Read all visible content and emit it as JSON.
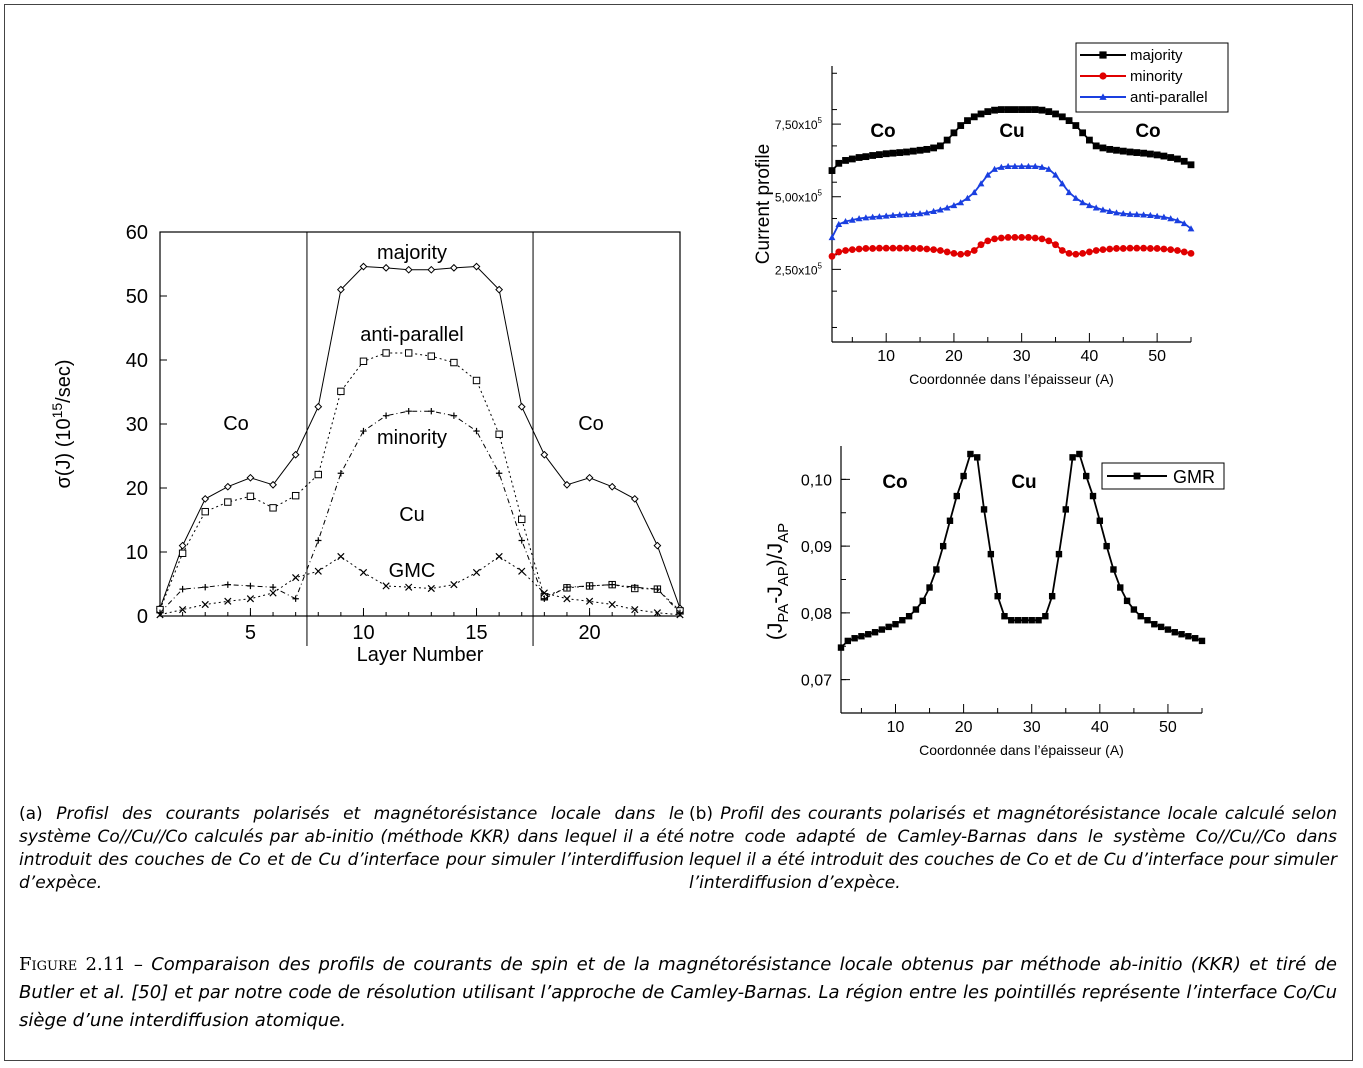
{
  "figure": {
    "label": "Figure 2.11 –",
    "caption": "Comparaison des profils de courants de spin et de la magnétorésistance locale obtenus par méthode ab-initio (KKR) et tiré de Butler et al. [50] et par notre code de résolution utilisant l’approche de Camley-Barnas. La région entre les pointillés représente l’interface Co/Cu siège d’une interdiffusion atomique."
  },
  "subfigures": {
    "a": {
      "tag": "(a)",
      "caption": "Profisl des courants polarisés et magnétorésistance locale dans le système Co//Cu//Co calculés par ab-initio (méthode KKR) dans lequel il a été introduit des couches de Co et de Cu d’interface pour simuler l’interdiffusion d’expèce."
    },
    "b": {
      "tag": "(b)",
      "caption": "Profil des courants polarisés et magnétorésistance locale calculé selon notre code adapté de Camley-Barnas dans le système Co//Cu//Co dans lequel il a été introduit des couches de Co et de Cu d’interface pour simuler l’interdiffusion d’expèce."
    }
  },
  "chart_data": [
    {
      "id": "a",
      "type": "line",
      "xlabel": "Layer Number",
      "ylabel_main": "σ(J) (10",
      "ylabel_sup": "15",
      "ylabel_tail": "/sec)",
      "xlim": [
        1,
        24
      ],
      "ylim": [
        0,
        60
      ],
      "xticks": [
        5,
        10,
        15,
        20
      ],
      "yticks": [
        0,
        10,
        20,
        30,
        40,
        50,
        60
      ],
      "interfaces_x": [
        7.5,
        17.5
      ],
      "region_labels": [
        "Co",
        "Cu",
        "Co"
      ],
      "x": [
        1,
        2,
        3,
        4,
        5,
        6,
        7,
        8,
        9,
        10,
        11,
        12,
        13,
        14,
        15,
        16,
        17,
        18,
        19,
        20,
        21,
        22,
        23,
        24
      ],
      "series": [
        {
          "name": "majority",
          "marker": "diamond",
          "dash": "solid",
          "values": [
            1.2,
            11,
            18.3,
            20.2,
            21.6,
            20.5,
            25.2,
            32.7,
            51,
            54.6,
            54.4,
            54.1,
            54.1,
            54.4,
            54.6,
            51,
            32.7,
            25.2,
            20.5,
            21.6,
            20.2,
            18.3,
            11,
            1.2
          ]
        },
        {
          "name": "anti-parallel",
          "marker": "square",
          "dash": "dotted",
          "values": [
            1,
            9.8,
            16.3,
            17.8,
            18.7,
            16.9,
            18.8,
            22.1,
            35.1,
            39.8,
            41.1,
            41.1,
            40.6,
            39.6,
            36.8,
            28.4,
            15.1,
            3,
            4.4,
            4.7,
            4.9,
            4.3,
            4.2,
            0.8
          ]
        },
        {
          "name": "minority",
          "marker": "plus",
          "dash": "dashdot",
          "values": [
            0.5,
            4.2,
            4.5,
            4.9,
            4.7,
            4.5,
            2.7,
            11.8,
            22.3,
            28.9,
            31.3,
            32,
            32,
            31.3,
            28.9,
            22.3,
            11.8,
            2.7,
            4.5,
            4.7,
            4.9,
            4.5,
            4.2,
            0.5
          ]
        },
        {
          "name": "GMC",
          "marker": "cross",
          "dash": "dotted",
          "values": [
            0.2,
            1,
            1.8,
            2.3,
            2.7,
            3.6,
            6,
            7,
            9.3,
            6.8,
            4.7,
            4.5,
            4.3,
            4.9,
            6.8,
            9.3,
            7,
            3.6,
            2.7,
            2.3,
            1.8,
            1,
            0.5,
            0.2
          ]
        }
      ]
    },
    {
      "id": "b-top",
      "type": "line",
      "xlabel": "Coordonnée dans l’épaisseur (A)",
      "ylabel": "Current profile",
      "xlim": [
        2,
        55
      ],
      "ylim": [
        0,
        9.5
      ],
      "y_scale_note": "x10^5",
      "xticks": [
        10,
        20,
        30,
        40,
        50
      ],
      "yticks": [
        {
          "value": 2.5,
          "label": "2,50x10",
          "exp": "5"
        },
        {
          "value": 5.0,
          "label": "5,00x10",
          "exp": "5"
        },
        {
          "value": 7.5,
          "label": "7,50x10",
          "exp": "5"
        }
      ],
      "region_labels": [
        "Co",
        "Cu",
        "Co"
      ],
      "legend_position": "top-right",
      "x": [
        2,
        3,
        4,
        5,
        6,
        7,
        8,
        9,
        10,
        11,
        12,
        13,
        14,
        15,
        16,
        17,
        18,
        19,
        20,
        21,
        22,
        23,
        24,
        25,
        26,
        27,
        28,
        29,
        30,
        31,
        32,
        33,
        34,
        35,
        36,
        37,
        38,
        39,
        40,
        41,
        42,
        43,
        44,
        45,
        46,
        47,
        48,
        49,
        50,
        51,
        52,
        53,
        54,
        55
      ],
      "series": [
        {
          "name": "majority",
          "color": "#000000",
          "marker": "square",
          "values": [
            5.9,
            6.15,
            6.25,
            6.3,
            6.35,
            6.38,
            6.42,
            6.45,
            6.48,
            6.5,
            6.52,
            6.54,
            6.57,
            6.6,
            6.63,
            6.68,
            6.75,
            6.95,
            7.2,
            7.45,
            7.62,
            7.75,
            7.85,
            7.93,
            7.98,
            8,
            8,
            8,
            8,
            8,
            8,
            7.98,
            7.93,
            7.85,
            7.75,
            7.62,
            7.45,
            7.2,
            6.95,
            6.75,
            6.68,
            6.63,
            6.6,
            6.57,
            6.54,
            6.52,
            6.5,
            6.47,
            6.44,
            6.4,
            6.35,
            6.3,
            6.22,
            6.1
          ]
        },
        {
          "name": "minority",
          "color": "#e00000",
          "marker": "circle",
          "values": [
            2.95,
            3.1,
            3.15,
            3.18,
            3.2,
            3.22,
            3.22,
            3.23,
            3.23,
            3.23,
            3.23,
            3.23,
            3.22,
            3.22,
            3.2,
            3.18,
            3.15,
            3.1,
            3.05,
            3.02,
            3.05,
            3.15,
            3.35,
            3.48,
            3.55,
            3.58,
            3.6,
            3.6,
            3.6,
            3.6,
            3.58,
            3.55,
            3.48,
            3.35,
            3.15,
            3.05,
            3.02,
            3.05,
            3.1,
            3.15,
            3.18,
            3.2,
            3.22,
            3.22,
            3.23,
            3.23,
            3.23,
            3.22,
            3.22,
            3.2,
            3.18,
            3.15,
            3.1,
            3.05
          ]
        },
        {
          "name": "anti-parallel",
          "color": "#1a3fe0",
          "marker": "triangle",
          "values": [
            3.6,
            4.05,
            4.15,
            4.2,
            4.25,
            4.28,
            4.3,
            4.32,
            4.34,
            4.36,
            4.38,
            4.39,
            4.4,
            4.42,
            4.45,
            4.5,
            4.55,
            4.62,
            4.7,
            4.8,
            4.95,
            5.15,
            5.45,
            5.75,
            5.95,
            6.02,
            6.05,
            6.05,
            6.05,
            6.05,
            6.05,
            6.02,
            5.95,
            5.75,
            5.45,
            5.15,
            4.95,
            4.8,
            4.7,
            4.62,
            4.55,
            4.5,
            4.45,
            4.42,
            4.4,
            4.39,
            4.38,
            4.36,
            4.33,
            4.3,
            4.25,
            4.18,
            4.08,
            3.9
          ]
        }
      ]
    },
    {
      "id": "b-bottom",
      "type": "line",
      "xlabel": "Coordonnée dans l’épaisseur (A)",
      "ylabel": "(J_PA-J_AP)/J_AP",
      "xlim": [
        2,
        55
      ],
      "ylim": [
        0.065,
        0.105
      ],
      "xticks": [
        10,
        20,
        30,
        40,
        50
      ],
      "yticks": [
        {
          "value": 0.07,
          "label": "0,07"
        },
        {
          "value": 0.08,
          "label": "0,08"
        },
        {
          "value": 0.09,
          "label": "0,09"
        },
        {
          "value": 0.1,
          "label": "0,10"
        }
      ],
      "region_labels": [
        "Co",
        "Cu",
        "Co"
      ],
      "legend_position": "top-right",
      "x": [
        2,
        3,
        4,
        5,
        6,
        7,
        8,
        9,
        10,
        11,
        12,
        13,
        14,
        15,
        16,
        17,
        18,
        19,
        20,
        21,
        22,
        23,
        24,
        25,
        26,
        27,
        28,
        29,
        30,
        31,
        32,
        33,
        34,
        35,
        36,
        37,
        38,
        39,
        40,
        41,
        42,
        43,
        44,
        45,
        46,
        47,
        48,
        49,
        50,
        51,
        52,
        53,
        54,
        55
      ],
      "series": [
        {
          "name": "GMR",
          "color": "#000000",
          "marker": "square",
          "values": [
            0.0748,
            0.0758,
            0.0762,
            0.0765,
            0.0768,
            0.0771,
            0.0775,
            0.0779,
            0.0783,
            0.0789,
            0.0795,
            0.0805,
            0.0818,
            0.0838,
            0.0865,
            0.09,
            0.0938,
            0.0975,
            0.1005,
            0.1038,
            0.1033,
            0.0955,
            0.0888,
            0.0825,
            0.0795,
            0.0789,
            0.0789,
            0.0789,
            0.0789,
            0.0789,
            0.0795,
            0.0825,
            0.0888,
            0.0955,
            0.1033,
            0.1038,
            0.1005,
            0.0975,
            0.0938,
            0.09,
            0.0865,
            0.0838,
            0.0818,
            0.0805,
            0.0795,
            0.0789,
            0.0783,
            0.0779,
            0.0775,
            0.0771,
            0.0768,
            0.0765,
            0.0762,
            0.0758
          ]
        }
      ]
    }
  ]
}
